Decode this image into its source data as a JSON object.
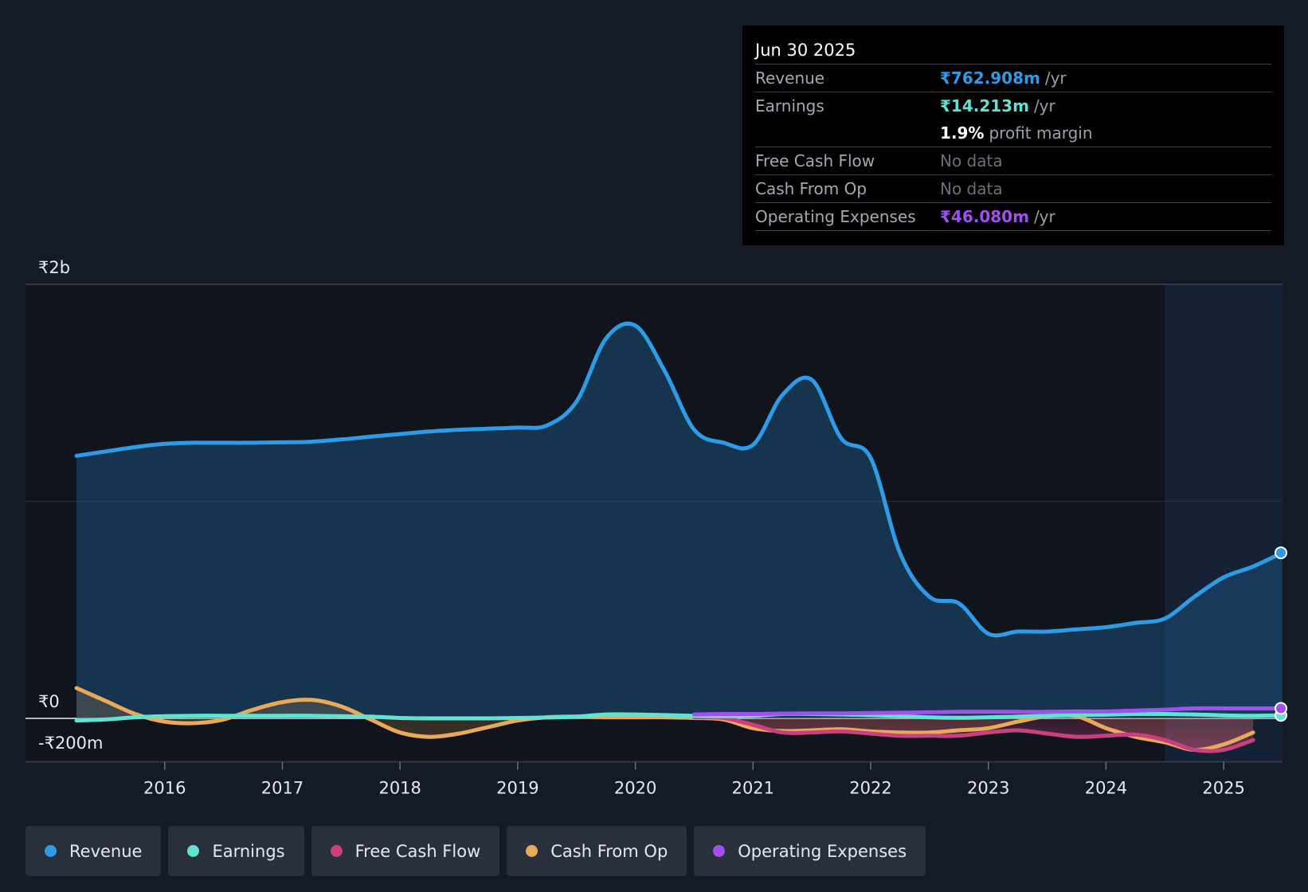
{
  "tooltip": {
    "date": "Jun 30 2025",
    "rows": [
      {
        "label": "Revenue",
        "value": "₹762.908m",
        "unit": "/yr",
        "color": "#2d9be6"
      },
      {
        "label": "Earnings",
        "value": "₹14.213m",
        "unit": "/yr",
        "color": "#5fe3d3"
      },
      {
        "label": "",
        "value": "1.9%",
        "unit": "profit margin",
        "color": "#ffffff"
      },
      {
        "label": "Free Cash Flow",
        "value": "No data",
        "unit": "",
        "color": "#6b707a"
      },
      {
        "label": "Cash From Op",
        "value": "No data",
        "unit": "",
        "color": "#6b707a"
      },
      {
        "label": "Operating Expenses",
        "value": "₹46.080m",
        "unit": "/yr",
        "color": "#a34ff0"
      }
    ]
  },
  "legend": [
    {
      "label": "Revenue",
      "color": "#2d9be6"
    },
    {
      "label": "Earnings",
      "color": "#5fe3d3"
    },
    {
      "label": "Free Cash Flow",
      "color": "#c8407f"
    },
    {
      "label": "Cash From Op",
      "color": "#e9a95a"
    },
    {
      "label": "Operating Expenses",
      "color": "#a34ff0"
    }
  ],
  "chart_data": {
    "type": "area",
    "y_tick_labels": [
      {
        "label": "₹2b",
        "value": 2000
      },
      {
        "label": "₹0",
        "value": 0
      },
      {
        "label": "-₹200m",
        "value": -200
      }
    ],
    "ylim": [
      -200,
      2000
    ],
    "xlim": [
      2015.25,
      2025.5
    ],
    "x_tick_labels": [
      "2016",
      "2017",
      "2018",
      "2019",
      "2020",
      "2021",
      "2022",
      "2023",
      "2024",
      "2025"
    ],
    "x_ticks": [
      2016,
      2017,
      2018,
      2019,
      2020,
      2021,
      2022,
      2023,
      2024,
      2025
    ],
    "forecast_start": 2024.5,
    "grid": true,
    "series": [
      {
        "name": "Revenue",
        "color": "#2d9be6",
        "fill": true,
        "x": [
          2015.25,
          2015.5,
          2015.75,
          2016.0,
          2016.25,
          2016.5,
          2016.75,
          2017.0,
          2017.25,
          2017.5,
          2017.75,
          2018.0,
          2018.25,
          2018.5,
          2018.75,
          2019.0,
          2019.25,
          2019.5,
          2019.75,
          2020.0,
          2020.25,
          2020.5,
          2020.75,
          2021.0,
          2021.25,
          2021.5,
          2021.75,
          2022.0,
          2022.25,
          2022.5,
          2022.75,
          2023.0,
          2023.25,
          2023.5,
          2023.75,
          2024.0,
          2024.25,
          2024.5,
          2024.75,
          2025.0,
          2025.25,
          2025.5
        ],
        "y": [
          1210,
          1230,
          1250,
          1265,
          1270,
          1270,
          1270,
          1272,
          1275,
          1285,
          1298,
          1310,
          1322,
          1330,
          1335,
          1340,
          1350,
          1460,
          1750,
          1810,
          1600,
          1330,
          1270,
          1260,
          1490,
          1560,
          1290,
          1200,
          760,
          560,
          530,
          390,
          400,
          400,
          410,
          420,
          440,
          460,
          560,
          650,
          700,
          763
        ]
      },
      {
        "name": "Earnings",
        "color": "#5fe3d3",
        "fill": false,
        "x": [
          2015.25,
          2015.5,
          2015.75,
          2016.0,
          2016.25,
          2016.5,
          2016.75,
          2017.0,
          2017.25,
          2017.5,
          2017.75,
          2018.0,
          2018.25,
          2018.5,
          2018.75,
          2019.0,
          2019.25,
          2019.5,
          2019.75,
          2020.0,
          2020.25,
          2020.5,
          2020.75,
          2021.0,
          2021.25,
          2021.5,
          2021.75,
          2022.0,
          2022.25,
          2022.5,
          2022.75,
          2023.0,
          2023.25,
          2023.5,
          2023.75,
          2024.0,
          2024.25,
          2024.5,
          2024.75,
          2025.0,
          2025.25,
          2025.5
        ],
        "y": [
          -10,
          -5,
          5,
          10,
          12,
          12,
          12,
          12,
          12,
          10,
          8,
          2,
          0,
          0,
          0,
          2,
          4,
          8,
          18,
          18,
          15,
          12,
          10,
          12,
          20,
          20,
          18,
          15,
          10,
          5,
          3,
          5,
          8,
          12,
          15,
          17,
          20,
          20,
          18,
          14,
          12,
          14
        ]
      },
      {
        "name": "Free Cash Flow",
        "color": "#c8407f",
        "fill": true,
        "x": [
          2020.5,
          2020.75,
          2021.0,
          2021.25,
          2021.5,
          2021.75,
          2022.0,
          2022.25,
          2022.5,
          2022.75,
          2023.0,
          2023.25,
          2023.5,
          2023.75,
          2024.0,
          2024.25,
          2024.5,
          2024.75,
          2025.0,
          2025.25
        ],
        "y": [
          5,
          2,
          -30,
          -65,
          -65,
          -60,
          -70,
          -80,
          -80,
          -80,
          -65,
          -55,
          -70,
          -85,
          -80,
          -75,
          -100,
          -145,
          -145,
          -100
        ]
      },
      {
        "name": "Cash From Op",
        "color": "#e9a95a",
        "fill": true,
        "x": [
          2015.25,
          2015.5,
          2015.75,
          2016.0,
          2016.25,
          2016.5,
          2016.75,
          2017.0,
          2017.25,
          2017.5,
          2017.75,
          2018.0,
          2018.25,
          2018.5,
          2018.75,
          2019.0,
          2019.25,
          2019.5,
          2019.75,
          2020.0,
          2020.25,
          2020.5,
          2020.75,
          2021.0,
          2021.25,
          2021.5,
          2021.75,
          2022.0,
          2022.25,
          2022.5,
          2022.75,
          2023.0,
          2023.25,
          2023.5,
          2023.75,
          2024.0,
          2024.25,
          2024.5,
          2024.75,
          2025.0,
          2025.25
        ],
        "y": [
          140,
          80,
          20,
          -15,
          -22,
          -5,
          40,
          75,
          85,
          55,
          -5,
          -65,
          -85,
          -70,
          -40,
          -10,
          5,
          8,
          5,
          5,
          5,
          2,
          -5,
          -45,
          -58,
          -55,
          -50,
          -60,
          -65,
          -65,
          -55,
          -45,
          -15,
          10,
          10,
          -45,
          -85,
          -110,
          -145,
          -120,
          -65
        ]
      },
      {
        "name": "Operating Expenses",
        "color": "#a34ff0",
        "fill": false,
        "x": [
          2020.5,
          2020.75,
          2021.0,
          2021.25,
          2021.5,
          2021.75,
          2022.0,
          2022.25,
          2022.5,
          2022.75,
          2023.0,
          2023.25,
          2023.5,
          2023.75,
          2024.0,
          2024.25,
          2024.5,
          2024.75,
          2025.0,
          2025.25,
          2025.5
        ],
        "y": [
          18,
          20,
          20,
          22,
          23,
          23,
          25,
          26,
          28,
          30,
          30,
          30,
          30,
          32,
          32,
          36,
          40,
          46,
          46,
          46,
          46
        ]
      }
    ]
  }
}
